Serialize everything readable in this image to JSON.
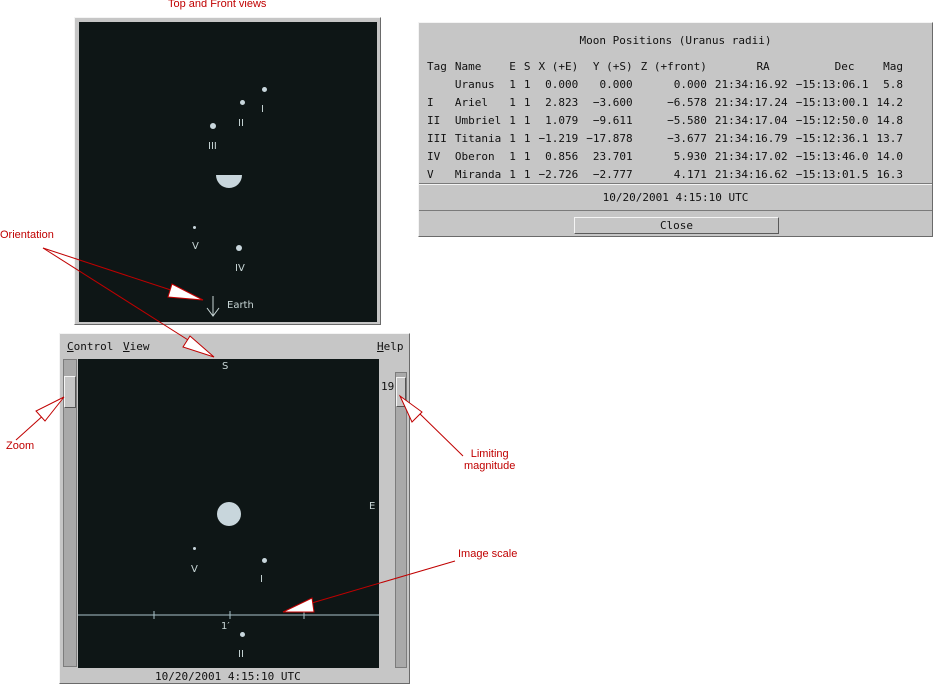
{
  "annotations": {
    "top_front_views": "Top and Front views",
    "orientation": "Orientation",
    "zoom": "Zoom",
    "limiting_magnitude_1": "Limiting",
    "limiting_magnitude_2": "magnitude",
    "image_scale": "Image scale"
  },
  "top_view": {
    "moon_labels": {
      "ariel": "I",
      "umbriel": "II",
      "titania": "III",
      "miranda": "V",
      "oberon": "IV"
    },
    "earth_label": "Earth"
  },
  "front_view": {
    "menu": {
      "control": "Control",
      "view": "View",
      "help": "Help"
    },
    "orientation_s": "S",
    "orientation_e": "E",
    "limiting_magnitude_value": "19",
    "moon_labels": {
      "miranda": "V",
      "ariel": "I",
      "umbriel": "II"
    },
    "scale_label": "1′",
    "status_time": "10/20/2001   4:15:10 UTC"
  },
  "positions": {
    "title": "Moon Positions (Uranus radii)",
    "columns": [
      "Tag",
      "Name",
      "E",
      "S",
      "X (+E)",
      "Y (+S)",
      "Z (+front)",
      "RA",
      "Dec",
      "Mag"
    ],
    "rows": [
      [
        "",
        "Uranus",
        "1",
        "1",
        "0.000",
        "0.000",
        "0.000",
        "21:34:16.92",
        "−15:13:06.1",
        "5.8"
      ],
      [
        "I",
        "Ariel",
        "1",
        "1",
        "2.823",
        "−3.600",
        "−6.578",
        "21:34:17.24",
        "−15:13:00.1",
        "14.2"
      ],
      [
        "II",
        "Umbriel",
        "1",
        "1",
        "1.079",
        "−9.611",
        "−5.580",
        "21:34:17.04",
        "−15:12:50.0",
        "14.8"
      ],
      [
        "III",
        "Titania",
        "1",
        "1",
        "−1.219",
        "−17.878",
        "−3.677",
        "21:34:16.79",
        "−15:12:36.1",
        "13.7"
      ],
      [
        "IV",
        "Oberon",
        "1",
        "1",
        "0.856",
        "23.701",
        "5.930",
        "21:34:17.02",
        "−15:13:46.0",
        "14.0"
      ],
      [
        "V",
        "Miranda",
        "1",
        "1",
        "−2.726",
        "−2.777",
        "4.171",
        "21:34:16.62",
        "−15:13:01.5",
        "16.3"
      ]
    ],
    "status_time": "10/20/2001   4:15:10 UTC",
    "close_label": "Close"
  },
  "colors": {
    "annotation": "#c00000",
    "sky": "#0e1616",
    "moon": "#c8d6dc",
    "panel": "#c6c6c6"
  }
}
